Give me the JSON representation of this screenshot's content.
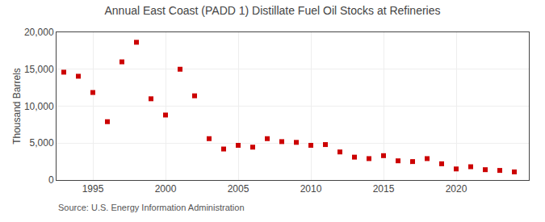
{
  "chart_data": {
    "type": "scatter",
    "title": "Annual East Coast (PADD 1) Distillate Fuel Oil Stocks at Refineries",
    "ylabel": "Thousand Barrels",
    "annotations": [
      "Source: U.S. Energy Information Administration"
    ],
    "x": [
      1993,
      1994,
      1995,
      1996,
      1997,
      1998,
      1999,
      2000,
      2001,
      2002,
      2003,
      2004,
      2005,
      2006,
      2007,
      2008,
      2009,
      2010,
      2011,
      2012,
      2013,
      2014,
      2015,
      2016,
      2017,
      2018,
      2019,
      2020,
      2021,
      2022,
      2023,
      2024
    ],
    "values": [
      14600,
      14050,
      11850,
      7900,
      16000,
      18650,
      11000,
      8800,
      15000,
      11400,
      5600,
      4200,
      4700,
      4450,
      5600,
      5200,
      5100,
      4700,
      4800,
      3800,
      3100,
      2900,
      3300,
      2600,
      2500,
      2900,
      2200,
      1500,
      1800,
      1400,
      1300,
      1100
    ],
    "color": "#cc0000",
    "marker": "square",
    "xlim": [
      1992.5,
      2025
    ],
    "xticks": [
      1995,
      2000,
      2005,
      2010,
      2015,
      2020
    ],
    "ylim": [
      0,
      20000
    ],
    "yticks": [
      0,
      {
        "value": 5000,
        "label": "5,000"
      },
      {
        "value": 10000,
        "label": "10,000"
      },
      {
        "value": 15000,
        "label": "15,000"
      },
      {
        "value": 20000,
        "label": "20,000"
      }
    ],
    "grid": true
  }
}
